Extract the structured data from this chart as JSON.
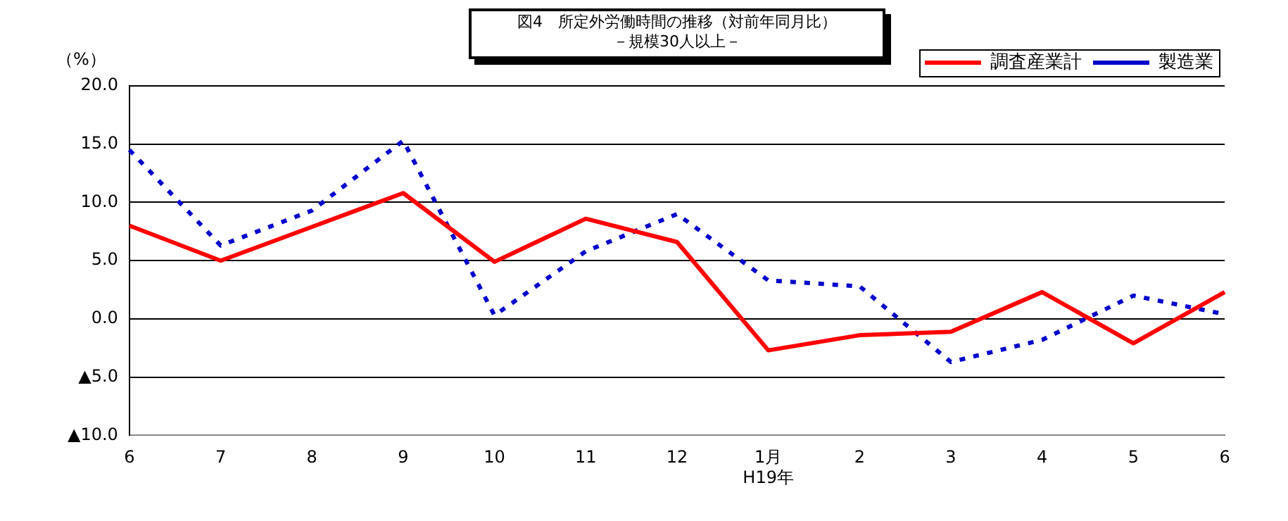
{
  "chart_data": {
    "type": "line",
    "title": "図4　所定外労働時間の推移（対前年同月比）",
    "subtitle": "－規模30人以上－",
    "ylabel": "（%）",
    "categories": [
      "6",
      "7",
      "8",
      "9",
      "10",
      "11",
      "12",
      "1月\nH19年",
      "2",
      "3",
      "4",
      "5",
      "6"
    ],
    "series": [
      {
        "name": "調査産業計",
        "color": "#ff0000",
        "line_style": "solid",
        "values": [
          8.0,
          5.0,
          7.9,
          10.8,
          4.9,
          8.6,
          6.6,
          -2.7,
          -1.4,
          -1.1,
          2.3,
          -2.1,
          2.3
        ]
      },
      {
        "name": "製造業",
        "color": "#0000cc",
        "line_style": "dashed",
        "values": [
          14.5,
          6.3,
          9.3,
          15.3,
          0.3,
          5.8,
          9.0,
          3.3,
          2.8,
          -3.7,
          -1.8,
          2.0,
          0.4
        ]
      }
    ],
    "ylim": [
      -10,
      20
    ],
    "yticks": [
      {
        "value": -10,
        "label": "▲10.0"
      },
      {
        "value": -5,
        "label": "▲5.0"
      },
      {
        "value": 0,
        "label": "0.0"
      },
      {
        "value": 5,
        "label": "5.0"
      },
      {
        "value": 10,
        "label": "10.0"
      },
      {
        "value": 15,
        "label": "15.0"
      },
      {
        "value": 20,
        "label": "20.0"
      }
    ],
    "grid": "y",
    "legend": "top right",
    "marker": "none"
  }
}
